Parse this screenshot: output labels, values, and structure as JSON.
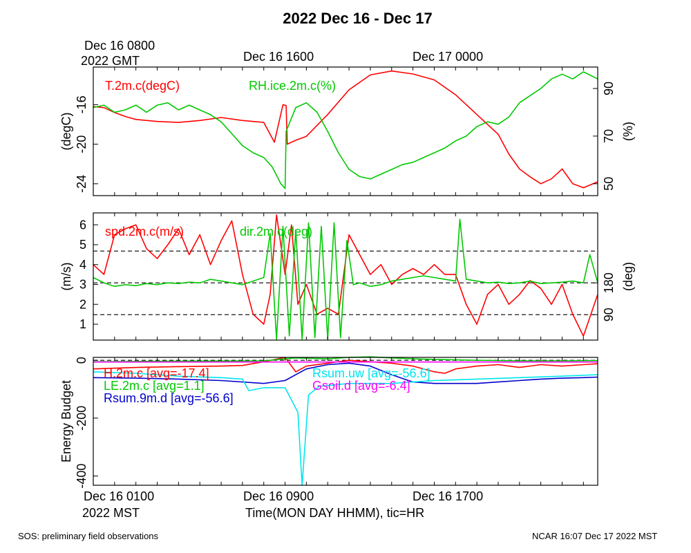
{
  "header": {
    "title": "2022 Dec 16 - Dec 17",
    "gmt_start_line1": "Dec 16 0800",
    "gmt_start_line2": "2022 GMT",
    "gmt_tick_2": "Dec 16 1600",
    "gmt_tick_3": "Dec 17 0000"
  },
  "xaxis": {
    "mst_tick_1": "Dec 16 0100",
    "mst_tick_2": "Dec 16 0900",
    "mst_tick_3": "Dec 16 1700",
    "mst_year": "2022 MST",
    "label": "Time(MON DAY HHMM), tic=HR",
    "range_hours_mst": [
      0.0,
      23.67
    ]
  },
  "footer": {
    "left": "SOS: preliminary field observations",
    "right": "NCAR 16:07 Dec 17 2022 MST"
  },
  "colors": {
    "red": "#ff0000",
    "green": "#00c800",
    "blue": "#0000cc",
    "cyan": "#00e5ee",
    "magenta": "#ff00ff"
  },
  "chart_data": [
    {
      "type": "line",
      "panel": "temperature_rh",
      "left_ylabel": "(degC)",
      "right_ylabel": "(%)",
      "left_ylim": [
        -25.2,
        -12.2
      ],
      "right_ylim": [
        45,
        99
      ],
      "left_ticks": [
        -24,
        -20,
        -16
      ],
      "right_ticks": [
        50,
        70,
        90
      ],
      "series": [
        {
          "name": "T.2m.c(degC)",
          "label": "T.2m.c(degC)",
          "color": "red",
          "axis": "left",
          "x": [
            0,
            0.5,
            1,
            1.5,
            2,
            3,
            4,
            5,
            6,
            7,
            8,
            8.5,
            8.9,
            9.05,
            9.1,
            9.5,
            10,
            11,
            12,
            13,
            14,
            15,
            16,
            17,
            18,
            18.5,
            19,
            19.5,
            20,
            20.5,
            21,
            21.5,
            22,
            22.5,
            23,
            23.67
          ],
          "values": [
            -16.2,
            -16.3,
            -16.8,
            -17.2,
            -17.5,
            -17.7,
            -17.8,
            -17.6,
            -17.3,
            -17.6,
            -17.8,
            -19.8,
            -16.0,
            -16.1,
            -20.0,
            -19.6,
            -19.2,
            -17.0,
            -14.5,
            -13.0,
            -12.6,
            -12.9,
            -13.5,
            -15.0,
            -17.0,
            -18.0,
            -19.0,
            -21.0,
            -22.5,
            -23.3,
            -24.0,
            -23.5,
            -22.5,
            -24.0,
            -24.4,
            -23.8
          ]
        },
        {
          "name": "RH.ice.2m.c(%)",
          "label": "RH.ice.2m.c(%)",
          "color": "green",
          "axis": "right",
          "x": [
            0,
            0.5,
            1,
            1.5,
            2,
            2.5,
            3,
            3.5,
            4,
            4.5,
            5,
            5.5,
            6,
            6.5,
            7,
            7.5,
            8,
            8.4,
            8.8,
            9.0,
            9.05,
            9.5,
            10,
            10.5,
            11,
            11.5,
            12,
            12.5,
            13,
            13.5,
            14,
            14.5,
            15,
            15.5,
            16,
            16.5,
            17,
            17.5,
            18,
            18.5,
            19,
            19.5,
            20,
            20.5,
            21,
            21.5,
            22,
            22.5,
            23,
            23.67
          ],
          "values": [
            82,
            83,
            80,
            81,
            83,
            80,
            83,
            84,
            81,
            83,
            81,
            79,
            76,
            71,
            66,
            63,
            61,
            57,
            50,
            48,
            72,
            82,
            84,
            80,
            72,
            63,
            56,
            53,
            52,
            54,
            56,
            58,
            59,
            61,
            63,
            65,
            68,
            70,
            74,
            76,
            75,
            78,
            84,
            87,
            90,
            94,
            96,
            94,
            97,
            94
          ]
        }
      ]
    },
    {
      "type": "line",
      "panel": "wind",
      "left_ylabel": "(m/s)",
      "right_ylabel": "(deg)",
      "left_ylim": [
        0.2,
        6.6
      ],
      "right_ylim": [
        18,
        378
      ],
      "left_ticks": [
        1,
        2,
        3,
        4,
        5,
        6
      ],
      "right_ticks": [
        90,
        180
      ],
      "reference_lines_deg": [
        90,
        180,
        270
      ],
      "series": [
        {
          "name": "spd.2m.c(m/s)",
          "label": "spd.2m.c(m/s)",
          "color": "red",
          "axis": "left",
          "x": [
            0,
            0.5,
            1,
            1.5,
            2,
            2.5,
            3,
            3.5,
            4,
            4.5,
            5,
            5.5,
            6,
            6.5,
            7,
            7.5,
            8,
            8.3,
            8.6,
            9.0,
            9.3,
            9.6,
            10,
            10.5,
            11,
            11.5,
            12,
            12.5,
            13,
            13.5,
            14,
            14.5,
            15,
            15.5,
            16,
            16.5,
            17,
            17.5,
            18,
            18.5,
            19,
            19.5,
            20,
            20.5,
            21,
            21.5,
            22,
            22.5,
            23,
            23.67
          ],
          "values": [
            4.0,
            3.5,
            5.5,
            5.8,
            6.0,
            4.8,
            4.3,
            5.0,
            5.8,
            4.5,
            5.5,
            4.0,
            5.2,
            6.2,
            3.5,
            1.5,
            1.0,
            2.5,
            6.5,
            3.5,
            6.0,
            2.0,
            3.0,
            1.5,
            1.8,
            1.5,
            5.5,
            4.5,
            3.5,
            4.0,
            3.0,
            3.5,
            3.8,
            3.5,
            4.0,
            3.5,
            3.5,
            2.0,
            1.0,
            2.5,
            3.0,
            2.0,
            2.5,
            3.2,
            2.8,
            2.0,
            3.0,
            1.5,
            0.4,
            2.5
          ]
        },
        {
          "name": "dir.2m.c(deg)",
          "label": "dir.2m.c(deg)",
          "color": "green",
          "axis": "right",
          "x": [
            0,
            0.5,
            1,
            1.5,
            2,
            2.5,
            3,
            3.5,
            4,
            4.5,
            5,
            5.5,
            6,
            6.5,
            7,
            7.5,
            8,
            8.3,
            8.6,
            8.9,
            9.2,
            9.5,
            9.8,
            10.1,
            10.4,
            10.7,
            11.0,
            11.3,
            11.6,
            11.9,
            12.2,
            12.5,
            13,
            13.5,
            14,
            14.5,
            15,
            15.5,
            16,
            16.5,
            17,
            17.2,
            17.5,
            18,
            18.5,
            19,
            19.5,
            20,
            20.5,
            21,
            21.5,
            22,
            22.5,
            23,
            23.3,
            23.67
          ],
          "values": [
            195,
            180,
            170,
            175,
            172,
            178,
            175,
            180,
            178,
            182,
            180,
            190,
            185,
            180,
            175,
            185,
            195,
            320,
            20,
            340,
            30,
            330,
            20,
            350,
            25,
            340,
            20,
            350,
            25,
            300,
            175,
            180,
            170,
            175,
            185,
            190,
            195,
            200,
            195,
            190,
            185,
            360,
            190,
            185,
            180,
            182,
            178,
            180,
            185,
            178,
            180,
            182,
            185,
            180,
            260,
            180
          ]
        }
      ]
    },
    {
      "type": "line",
      "panel": "energy_budget",
      "left_ylabel": "Energy Budget",
      "left_ylim": [
        -432,
        10
      ],
      "left_ticks": [
        -400,
        -200,
        0
      ],
      "series": [
        {
          "name": "H.2m.c",
          "label": "H.2m.c [avg=-17.4]",
          "color": "red",
          "x": [
            0,
            2,
            4,
            6,
            7,
            8,
            9,
            9.5,
            10,
            11,
            12,
            13,
            14,
            15,
            16,
            16.5,
            17,
            18,
            19,
            20,
            21,
            22,
            23,
            23.67
          ],
          "values": [
            -30,
            -25,
            -22,
            -20,
            -18,
            -5,
            10,
            -40,
            -20,
            -10,
            0,
            -5,
            -10,
            -20,
            -40,
            -45,
            -30,
            -20,
            -15,
            -25,
            -15,
            -20,
            -15,
            -12
          ]
        },
        {
          "name": "LE.2m.c",
          "label": "LE.2m.c [avg=1.1]",
          "color": "green",
          "x": [
            0,
            4,
            8,
            9.5,
            11,
            12,
            13,
            14,
            15,
            16,
            18,
            20,
            22,
            23.67
          ],
          "values": [
            -5,
            -3,
            -2,
            8,
            5,
            10,
            12,
            8,
            5,
            3,
            0,
            -2,
            -2,
            -1
          ]
        },
        {
          "name": "Rsum.9m.d",
          "label": "Rsum.9m.d [avg=-56.6]",
          "color": "blue",
          "x": [
            0,
            2,
            4,
            6,
            8,
            9,
            9.5,
            10,
            11,
            12,
            13,
            14,
            15,
            16,
            17,
            18,
            19,
            20,
            21,
            22,
            23,
            23.67
          ],
          "values": [
            -60,
            -62,
            -65,
            -70,
            -80,
            -70,
            -50,
            -30,
            -15,
            -10,
            -20,
            -50,
            -75,
            -80,
            -80,
            -80,
            -75,
            -70,
            -65,
            -62,
            -60,
            -58
          ]
        },
        {
          "name": "Rsum.uw",
          "label": "Rsum.uw [avg=-56.6]",
          "color": "cyan",
          "x": [
            0,
            2,
            4,
            6,
            7,
            7.3,
            8,
            9,
            9.6,
            9.8,
            10.1,
            10.6,
            12,
            14,
            15,
            16,
            18,
            20,
            22,
            23.67
          ],
          "values": [
            -40,
            -45,
            -55,
            -60,
            -65,
            -105,
            -95,
            -95,
            -180,
            -432,
            -120,
            -90,
            -80,
            -80,
            -75,
            -70,
            -65,
            -60,
            -55,
            -50
          ]
        },
        {
          "name": "Gsoil.d",
          "label": "Gsoil.d [avg=-6.4]",
          "color": "magenta",
          "x": [
            0,
            23.67
          ],
          "values": [
            -6,
            -6
          ]
        }
      ]
    }
  ]
}
